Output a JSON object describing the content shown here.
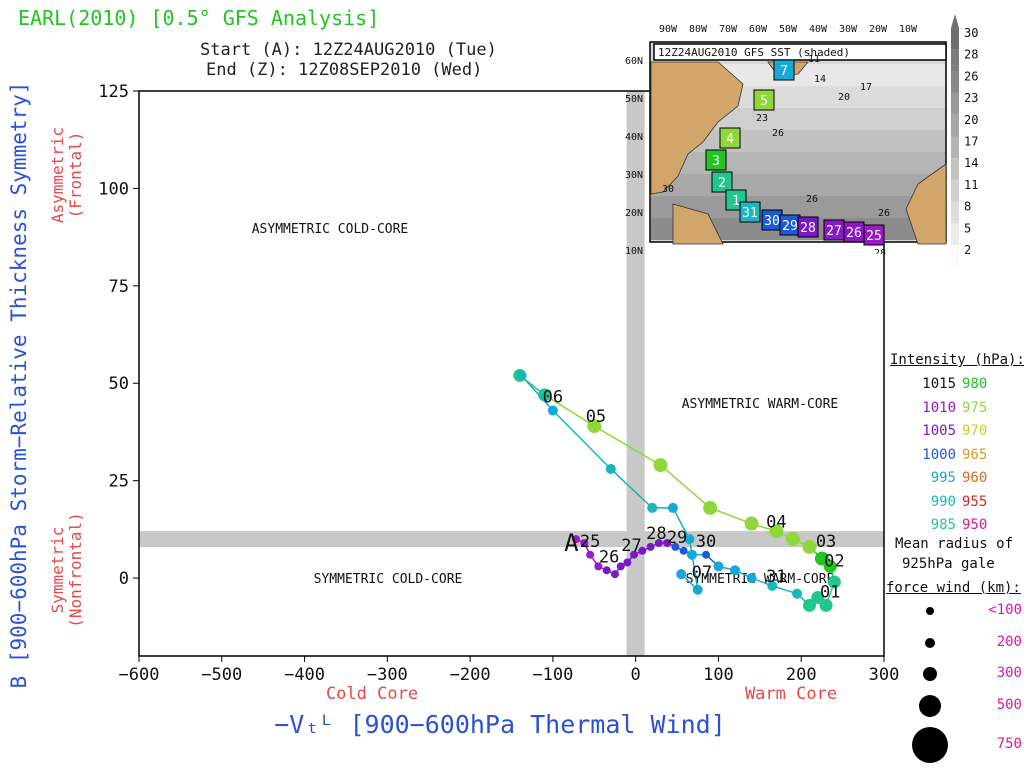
{
  "header": {
    "title": "EARL(2010) [0.5° GFS Analysis]",
    "start": "Start (A): 12Z24AUG2010 (Tue)",
    "end": "End (Z): 12Z08SEP2010 (Wed)"
  },
  "chart_data": {
    "type": "scatter",
    "xlabel": "−Vₜᴸ [900−600hPa Thermal Wind]",
    "ylabel": "B [900−600hPa Storm−Relative Thickness Symmetry]",
    "xlim": [
      -600,
      300
    ],
    "ylim": [
      -20,
      125
    ],
    "xticks": [
      -600,
      -500,
      -400,
      -300,
      -200,
      -100,
      0,
      100,
      200,
      300
    ],
    "yticks": [
      0,
      25,
      50,
      75,
      100,
      125
    ],
    "x_sublabels": {
      "left": "Cold Core",
      "right": "Warm Core"
    },
    "y_sublabels": {
      "top": "Asymmetric (Frontal)",
      "bottom": "Symmetric (Nonfrontal)"
    },
    "quadrants": {
      "asym_cold": "ASYMMETRIC COLD-CORE",
      "asym_warm": "ASYMMETRIC WARM-CORE",
      "sym_cold": "SYMMETRIC COLD-CORE",
      "sym_warm": "SYMMETRIC WARM-CORE"
    },
    "threshold_x": 0,
    "threshold_y": 10,
    "start_marker": "A",
    "track": [
      {
        "x": -72,
        "y": 10,
        "p": 1010
      },
      {
        "x": -62,
        "y": 9,
        "p": 1010
      },
      {
        "x": -55,
        "y": 6,
        "p": 1008
      },
      {
        "x": -45,
        "y": 3,
        "p": 1008
      },
      {
        "x": -35,
        "y": 2,
        "p": 1007
      },
      {
        "x": -25,
        "y": 1,
        "p": 1007
      },
      {
        "x": -18,
        "y": 3,
        "p": 1006
      },
      {
        "x": -10,
        "y": 4,
        "p": 1006
      },
      {
        "x": -2,
        "y": 6,
        "p": 1005
      },
      {
        "x": 8,
        "y": 7,
        "p": 1005
      },
      {
        "x": 18,
        "y": 8,
        "p": 1005
      },
      {
        "x": 28,
        "y": 9,
        "p": 1004
      },
      {
        "x": 38,
        "y": 9,
        "p": 1004
      },
      {
        "x": 48,
        "y": 8,
        "p": 1003
      },
      {
        "x": 58,
        "y": 7,
        "p": 1001
      },
      {
        "x": 68,
        "y": 6,
        "p": 999
      },
      {
        "x": 85,
        "y": 6,
        "p": 1000
      },
      {
        "x": 100,
        "y": 3,
        "p": 998
      },
      {
        "x": 120,
        "y": 2,
        "p": 996
      },
      {
        "x": 140,
        "y": 0,
        "p": 995
      },
      {
        "x": 165,
        "y": -2,
        "p": 992
      },
      {
        "x": 195,
        "y": -4,
        "p": 990
      },
      {
        "x": 210,
        "y": -7,
        "p": 988
      },
      {
        "x": 220,
        "y": -5,
        "p": 985
      },
      {
        "x": 230,
        "y": -7,
        "p": 984
      },
      {
        "x": 240,
        "y": -1,
        "p": 983
      },
      {
        "x": 235,
        "y": 3,
        "p": 982
      },
      {
        "x": 225,
        "y": 5,
        "p": 978
      },
      {
        "x": 210,
        "y": 8,
        "p": 976
      },
      {
        "x": 190,
        "y": 10,
        "p": 975
      },
      {
        "x": 170,
        "y": 12,
        "p": 973
      },
      {
        "x": 140,
        "y": 14,
        "p": 972
      },
      {
        "x": 90,
        "y": 18,
        "p": 972
      },
      {
        "x": 30,
        "y": 29,
        "p": 975
      },
      {
        "x": -50,
        "y": 39,
        "p": 975
      },
      {
        "x": -110,
        "y": 47,
        "p": 985
      },
      {
        "x": -140,
        "y": 52,
        "p": 986
      }
    ],
    "track2": [
      {
        "x": 55,
        "y": 1,
        "p": 998
      },
      {
        "x": 75,
        "y": -3,
        "p": 997
      },
      {
        "x": 65,
        "y": 10,
        "p": 996
      },
      {
        "x": 45,
        "y": 18,
        "p": 995
      },
      {
        "x": 20,
        "y": 18,
        "p": 994
      },
      {
        "x": -30,
        "y": 28,
        "p": 993
      },
      {
        "x": -100,
        "y": 43,
        "p": 996
      },
      {
        "x": -138,
        "y": 52,
        "p": 990
      }
    ],
    "labels": [
      {
        "text": "25",
        "x": -55,
        "y": 8
      },
      {
        "text": "26",
        "x": -32,
        "y": 4
      },
      {
        "text": "27",
        "x": -5,
        "y": 7
      },
      {
        "text": "28",
        "x": 25,
        "y": 10
      },
      {
        "text": "29",
        "x": 50,
        "y": 9
      },
      {
        "text": "30",
        "x": 85,
        "y": 8
      },
      {
        "text": "31",
        "x": 170,
        "y": -1
      },
      {
        "text": "01",
        "x": 235,
        "y": -5
      },
      {
        "text": "02",
        "x": 240,
        "y": 3
      },
      {
        "text": "03",
        "x": 230,
        "y": 8
      },
      {
        "text": "04",
        "x": 170,
        "y": 13
      },
      {
        "text": "05",
        "x": -48,
        "y": 40
      },
      {
        "text": "06",
        "x": -100,
        "y": 45
      },
      {
        "text": "07",
        "x": 80,
        "y": 0
      }
    ]
  },
  "map": {
    "title": "12Z24AUG2010 GFS SST (shaded)",
    "lon_labels": [
      "90W",
      "80W",
      "70W",
      "60W",
      "50W",
      "40W",
      "30W",
      "20W",
      "10W"
    ],
    "lat_labels": [
      "60N",
      "50N",
      "40N",
      "30N",
      "20N",
      "10N"
    ],
    "scale": [
      "30",
      "28",
      "26",
      "23",
      "20",
      "17",
      "14",
      "11",
      "8",
      "5",
      "2"
    ],
    "sst_labels": [
      "11",
      "14",
      "17",
      "20",
      "23",
      "26",
      "26",
      "26",
      "28",
      "30"
    ],
    "track_boxes": [
      {
        "label": "7",
        "color": "#18a8d8"
      },
      {
        "label": "5",
        "color": "#8ed839"
      },
      {
        "label": "4",
        "color": "#8ed839"
      },
      {
        "label": "3",
        "color": "#22c522"
      },
      {
        "label": "2",
        "color": "#20c890"
      },
      {
        "label": "1",
        "color": "#20c890"
      },
      {
        "label": "31",
        "color": "#18b8c8"
      },
      {
        "label": "30",
        "color": "#1a5ad8"
      },
      {
        "label": "29",
        "color": "#1a5ad8"
      },
      {
        "label": "28",
        "color": "#7a18c8"
      },
      {
        "label": "27",
        "color": "#8a18c8"
      },
      {
        "label": "26",
        "color": "#8a18c8"
      },
      {
        "label": "25",
        "color": "#9a18c8"
      }
    ]
  },
  "intensity_legend": {
    "title": "Intensity (hPa):",
    "rows": [
      {
        "left": "1015",
        "lc": "#111111",
        "right": "980",
        "rc": "#22c522"
      },
      {
        "left": "1010",
        "lc": "#9a18c8",
        "right": "975",
        "rc": "#8ed839"
      },
      {
        "left": "1005",
        "lc": "#7a18c8",
        "right": "970",
        "rc": "#d8c820"
      },
      {
        "left": "1000",
        "lc": "#1a5ad8",
        "right": "965",
        "rc": "#d89a20"
      },
      {
        "left": "995",
        "lc": "#18a8d8",
        "right": "960",
        "rc": "#d86a20"
      },
      {
        "left": "990",
        "lc": "#18b8b8",
        "right": "955",
        "rc": "#d82a20"
      },
      {
        "left": "985",
        "lc": "#20c890",
        "right": "950",
        "rc": "#d81a98"
      }
    ]
  },
  "radius_legend": {
    "title1": "Mean radius of",
    "title2": "925hPa gale",
    "title3": "force wind (km):",
    "items": [
      "<100",
      "200",
      "300",
      "500",
      "750"
    ]
  },
  "colors": {
    "title": "#22c522",
    "axis_blue": "#2a52d8",
    "axis_red": "#e84848",
    "threshold": "#c8c8c8"
  }
}
